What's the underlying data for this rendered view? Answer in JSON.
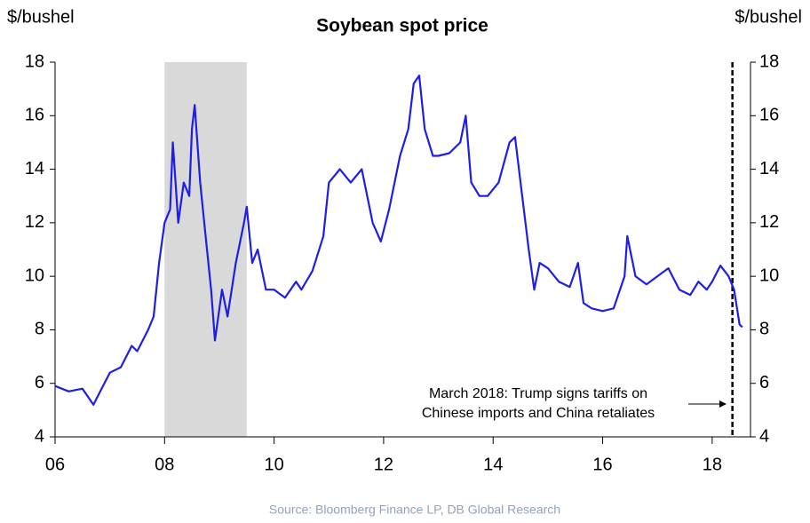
{
  "chart_data": {
    "type": "line",
    "title": "Soybean spot price",
    "y_label": "$/bushel",
    "y2_label": "$/bushel",
    "source": "Source: Bloomberg Finance LP, DB Global Research",
    "annotation": [
      "March 2018: Trump signs tariffs on",
      "Chinese imports and China retaliates"
    ],
    "shaded_region": [
      2008,
      2009.5
    ],
    "event_line": 2018.37,
    "xlim": [
      2006,
      2018.7
    ],
    "xticks": [
      {
        "value": 2006,
        "label": "06"
      },
      {
        "value": 2008,
        "label": "08"
      },
      {
        "value": 2010,
        "label": "10"
      },
      {
        "value": 2012,
        "label": "12"
      },
      {
        "value": 2014,
        "label": "14"
      },
      {
        "value": 2016,
        "label": "16"
      },
      {
        "value": 2018,
        "label": "18"
      }
    ],
    "ylim": [
      4,
      18
    ],
    "yticks": [
      4,
      6,
      8,
      10,
      12,
      14,
      16,
      18
    ],
    "y2lim": [
      4,
      18
    ],
    "y2ticks": [
      4,
      6,
      8,
      10,
      12,
      14,
      16,
      18
    ],
    "x": [
      2006.0,
      2006.25,
      2006.5,
      2006.7,
      2006.85,
      2007.0,
      2007.2,
      2007.4,
      2007.5,
      2007.7,
      2007.8,
      2007.9,
      2008.0,
      2008.1,
      2008.15,
      2008.25,
      2008.35,
      2008.45,
      2008.5,
      2008.55,
      2008.65,
      2008.75,
      2008.85,
      2008.92,
      2009.05,
      2009.15,
      2009.3,
      2009.45,
      2009.5,
      2009.6,
      2009.7,
      2009.85,
      2010.0,
      2010.2,
      2010.4,
      2010.5,
      2010.7,
      2010.9,
      2011.0,
      2011.2,
      2011.4,
      2011.6,
      2011.8,
      2011.95,
      2012.1,
      2012.3,
      2012.45,
      2012.55,
      2012.65,
      2012.75,
      2012.9,
      2013.0,
      2013.2,
      2013.4,
      2013.5,
      2013.6,
      2013.75,
      2013.9,
      2014.1,
      2014.3,
      2014.4,
      2014.5,
      2014.65,
      2014.75,
      2014.85,
      2015.0,
      2015.2,
      2015.4,
      2015.55,
      2015.65,
      2015.8,
      2016.0,
      2016.2,
      2016.4,
      2016.45,
      2016.6,
      2016.8,
      2017.0,
      2017.2,
      2017.4,
      2017.6,
      2017.75,
      2017.9,
      2018.0,
      2018.15,
      2018.3,
      2018.4,
      2018.5,
      2018.55
    ],
    "series": [
      {
        "name": "Soybean spot price",
        "color": "#1e1ee6",
        "values": [
          5.9,
          5.7,
          5.8,
          5.2,
          5.8,
          6.4,
          6.6,
          7.4,
          7.2,
          8.0,
          8.5,
          10.5,
          12.0,
          12.5,
          15.0,
          12.0,
          13.5,
          13.0,
          15.5,
          16.4,
          13.5,
          11.5,
          9.5,
          7.6,
          9.5,
          8.5,
          10.5,
          12.0,
          12.6,
          10.5,
          11.0,
          9.5,
          9.5,
          9.2,
          9.8,
          9.5,
          10.2,
          11.5,
          13.5,
          14.0,
          13.5,
          14.0,
          12.0,
          11.3,
          12.5,
          14.5,
          15.5,
          17.2,
          17.5,
          15.5,
          14.5,
          14.5,
          14.6,
          15.0,
          16.0,
          13.5,
          13.0,
          13.0,
          13.5,
          15.0,
          15.2,
          13.5,
          11.0,
          9.5,
          10.5,
          10.3,
          9.8,
          9.6,
          10.5,
          9.0,
          8.8,
          8.7,
          8.8,
          10.0,
          11.5,
          10.0,
          9.7,
          10.0,
          10.3,
          9.5,
          9.3,
          9.8,
          9.5,
          9.8,
          10.4,
          10.0,
          9.5,
          8.2,
          8.1
        ]
      }
    ]
  }
}
